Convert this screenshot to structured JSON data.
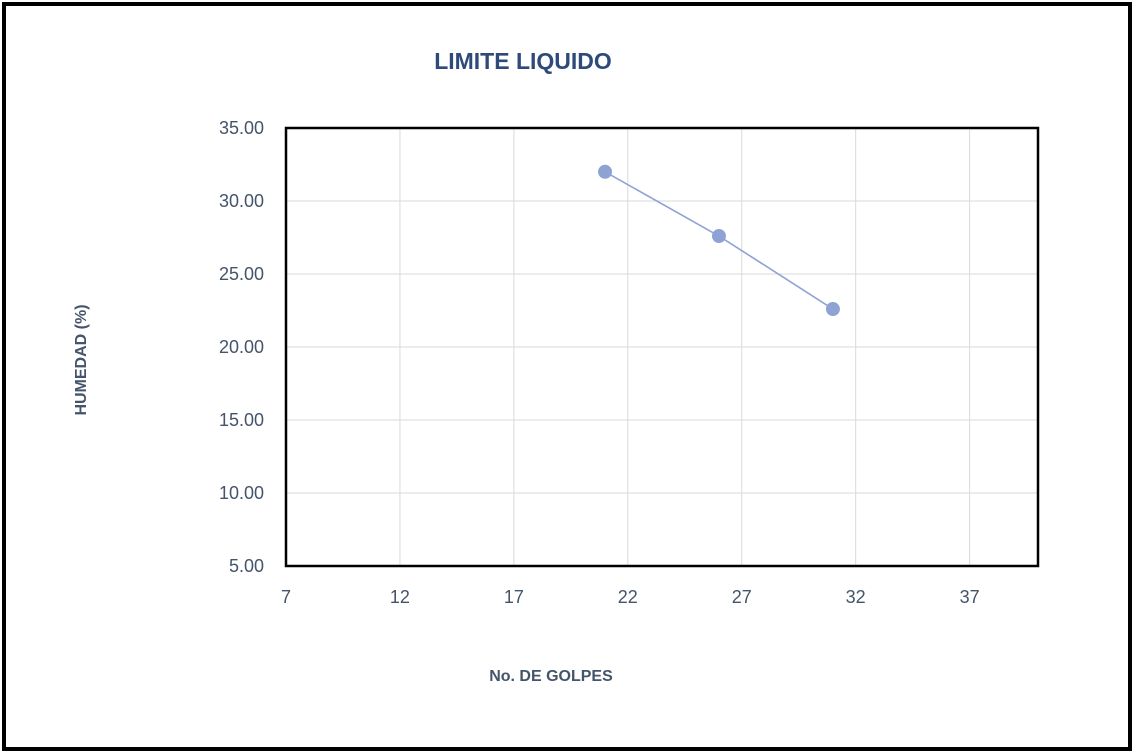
{
  "chart_data": {
    "type": "line",
    "title": "LIMITE LIQUIDO",
    "xlabel": "No. DE GOLPES",
    "ylabel": "HUMEDAD (%)",
    "xlim": [
      7,
      40
    ],
    "ylim": [
      5,
      35
    ],
    "xticks": [
      "7",
      "12",
      "17",
      "22",
      "27",
      "32",
      "37"
    ],
    "yticks": [
      "5.00",
      "10.00",
      "15.00",
      "20.00",
      "25.00",
      "30.00",
      "35.00"
    ],
    "grid": true,
    "legend": "none",
    "series": [
      {
        "x": [
          21,
          26,
          31
        ],
        "y": [
          32.0,
          27.6,
          22.6
        ]
      }
    ],
    "colors": {
      "title": "#2E4A7A",
      "text": "#44546A",
      "series": "#8FA2D4",
      "grid": "#D9D9D9",
      "plot_border": "#000000"
    }
  }
}
